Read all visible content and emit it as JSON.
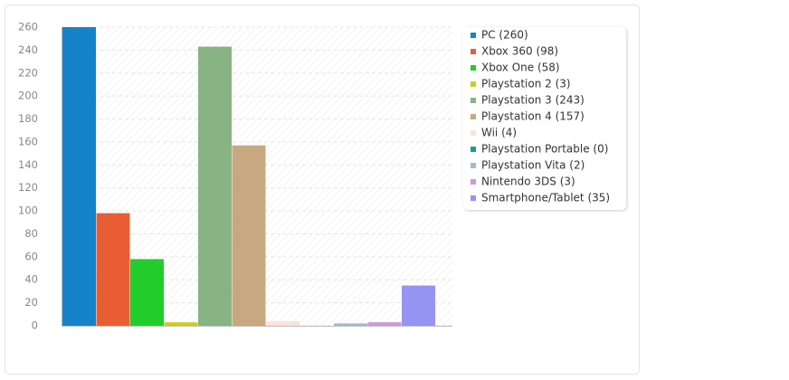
{
  "chart_data": {
    "type": "bar",
    "series": [
      {
        "name": "PC (260)",
        "color": "#1483c9",
        "values": [
          260
        ]
      },
      {
        "name": "Xbox 360 (98)",
        "color": "#e95d35",
        "values": [
          98
        ]
      },
      {
        "name": "Xbox One (58)",
        "color": "#21cc2b",
        "values": [
          58
        ]
      },
      {
        "name": "Playstation 2 (3)",
        "color": "#cccc22",
        "values": [
          3
        ]
      },
      {
        "name": "Playstation 3 (243)",
        "color": "#88b383",
        "values": [
          243
        ]
      },
      {
        "name": "Playstation 4 (157)",
        "color": "#c8a880",
        "values": [
          157
        ]
      },
      {
        "name": "Wii (4)",
        "color": "#fbe4d6",
        "values": [
          4
        ]
      },
      {
        "name": "Playstation Portable (0)",
        "color": "#159e8f",
        "values": [
          0
        ]
      },
      {
        "name": "Playstation Vita (2)",
        "color": "#a7b8cc",
        "values": [
          2
        ]
      },
      {
        "name": "Nintendo 3DS (3)",
        "color": "#cc99d9",
        "values": [
          3
        ]
      },
      {
        "name": "Smartphone/Tablet (35)",
        "color": "#9694f2",
        "values": [
          35
        ]
      }
    ],
    "ylim": [
      0,
      260
    ],
    "yticks": [
      0,
      20,
      40,
      60,
      80,
      100,
      120,
      140,
      160,
      180,
      200,
      220,
      240,
      260
    ],
    "grid": true,
    "legend": "right"
  }
}
